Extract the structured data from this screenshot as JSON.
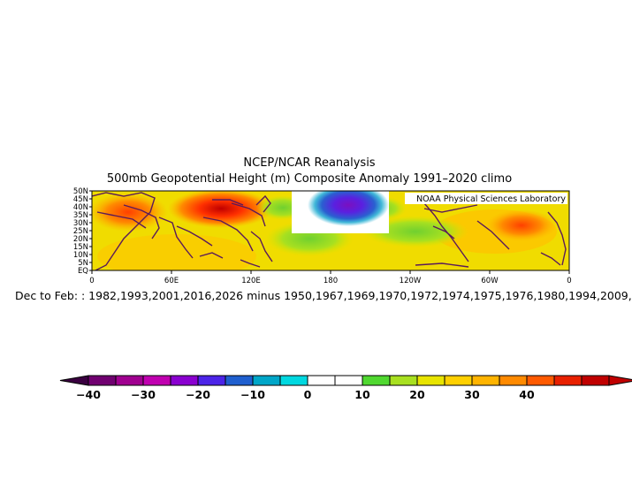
{
  "title_line1": "NCEP/NCAR Reanalysis",
  "title_line2": "500mb Geopotential Height (m) Composite Anomaly 1991–2020 climo",
  "credit": "NOAA Physical Sciences Laboratory",
  "caption": "Dec to Feb: : 1982,1993,2001,2016,2026 minus 1950,1967,1969,1970,1972,1974,1975,1976,1980,1994,2009,",
  "lat_labels": [
    "50N",
    "45N",
    "40N",
    "35N",
    "30N",
    "25N",
    "20N",
    "15N",
    "10N",
    "5N",
    "EQ"
  ],
  "lon_labels": [
    "0",
    "60E",
    "120E",
    "180",
    "120W",
    "60W",
    "0"
  ],
  "colorbar": {
    "colors": [
      "#700070",
      "#a00090",
      "#c000b0",
      "#8a00d0",
      "#4c24e8",
      "#1f5fcf",
      "#00a6c8",
      "#00d8e0",
      "#ffffff",
      "#ffffff",
      "#50d830",
      "#a8e020",
      "#e8e400",
      "#ffd000",
      "#ffb400",
      "#ff8a00",
      "#ff5a00",
      "#e82000",
      "#c00000"
    ],
    "tick_labels": [
      "−40",
      "−30",
      "−20",
      "−10",
      "0",
      "10",
      "20",
      "30",
      "40"
    ]
  },
  "colors": {
    "land_outline": "#5a1a5a",
    "background_field": "#f0dc00"
  }
}
